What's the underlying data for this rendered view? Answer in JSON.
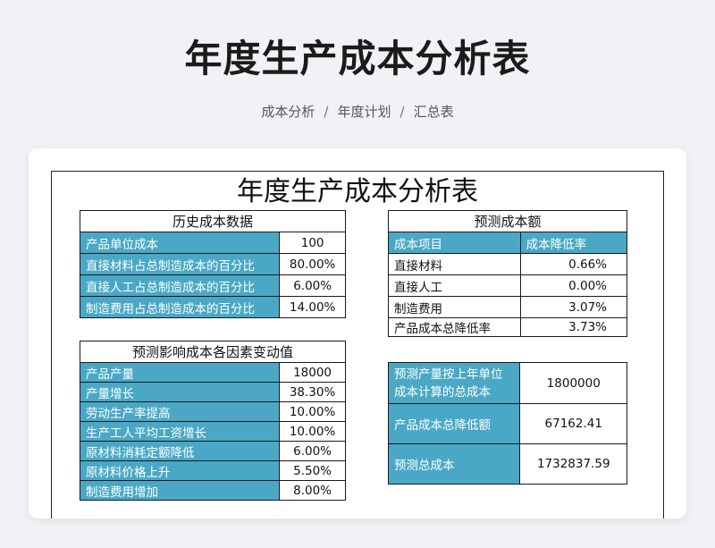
{
  "page": {
    "title": "年度生产成本分析表",
    "breadcrumb": [
      "成本分析",
      "年度计划",
      "汇总表"
    ]
  },
  "sheet": {
    "title": "年度生产成本分析表",
    "history": {
      "header": "历史成本数据",
      "rows": [
        {
          "label": "产品单位成本",
          "value": "100"
        },
        {
          "label": "直接材料占总制造成本的百分比",
          "value": "80.00%"
        },
        {
          "label": "直接人工占总制造成本的百分比",
          "value": "6.00%"
        },
        {
          "label": "制造费用占总制造成本的百分比",
          "value": "14.00%"
        }
      ]
    },
    "factors": {
      "header": "预测影响成本各因素变动值",
      "rows": [
        {
          "label": "产品产量",
          "value": "18000"
        },
        {
          "label": "产量增长",
          "value": "38.30%"
        },
        {
          "label": "劳动生产率提高",
          "value": "10.00%"
        },
        {
          "label": "生产工人平均工资增长",
          "value": "10.00%"
        },
        {
          "label": "原材料消耗定额降低",
          "value": "6.00%"
        },
        {
          "label": "原材料价格上升",
          "value": "5.50%"
        },
        {
          "label": "制造费用增加",
          "value": "8.00%"
        }
      ]
    },
    "forecast": {
      "header": "预测成本额",
      "col_item": "成本项目",
      "col_rate": "成本降低率",
      "rows": [
        {
          "label": "直接材料",
          "value": "0.66%"
        },
        {
          "label": "直接人工",
          "value": "0.00%"
        },
        {
          "label": "制造费用",
          "value": "3.07%"
        },
        {
          "label": "产品成本总降低率",
          "value": "3.73%"
        }
      ]
    },
    "summary": {
      "rows": [
        {
          "label": "预测产量按上年单位成本计算的总成本",
          "value": "1800000"
        },
        {
          "label": "产品成本总降低额",
          "value": "67162.41"
        },
        {
          "label": "预测总成本",
          "value": "1732837.59"
        }
      ]
    }
  },
  "colors": {
    "accent": "#4aa8c6",
    "background": "#f1f2f5"
  }
}
